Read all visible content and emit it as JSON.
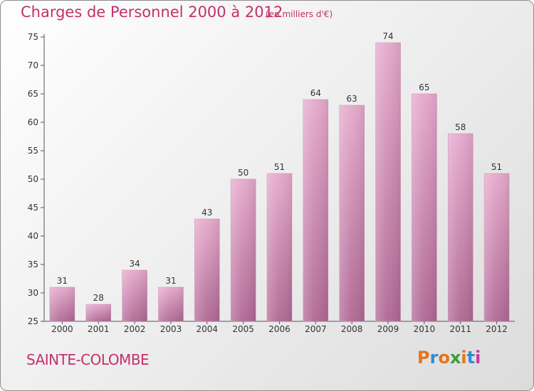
{
  "chart_data": {
    "type": "bar",
    "title": "Charges de Personnel 2000 à 2012",
    "subtitle": "(en milliers d'€)",
    "categories": [
      "2000",
      "2001",
      "2002",
      "2003",
      "2004",
      "2005",
      "2006",
      "2007",
      "2008",
      "2009",
      "2010",
      "2011",
      "2012"
    ],
    "values": [
      31,
      28,
      34,
      31,
      43,
      50,
      51,
      64,
      63,
      74,
      65,
      58,
      51
    ],
    "ylim": [
      25,
      75
    ],
    "yticks": [
      25,
      30,
      35,
      40,
      45,
      50,
      55,
      60,
      65,
      70,
      75
    ],
    "grid": false,
    "bar_color": "#d690b8"
  },
  "commune": "SAINTE-COLOMBE",
  "logo": {
    "letters": [
      "P",
      "r",
      "o",
      "x",
      "i",
      "t",
      "i"
    ],
    "colors": [
      "#e8731e",
      "#2a8fd4",
      "#e8731e",
      "#3a9d3a",
      "#e8731e",
      "#2a8fd4",
      "#c43a9d"
    ]
  }
}
